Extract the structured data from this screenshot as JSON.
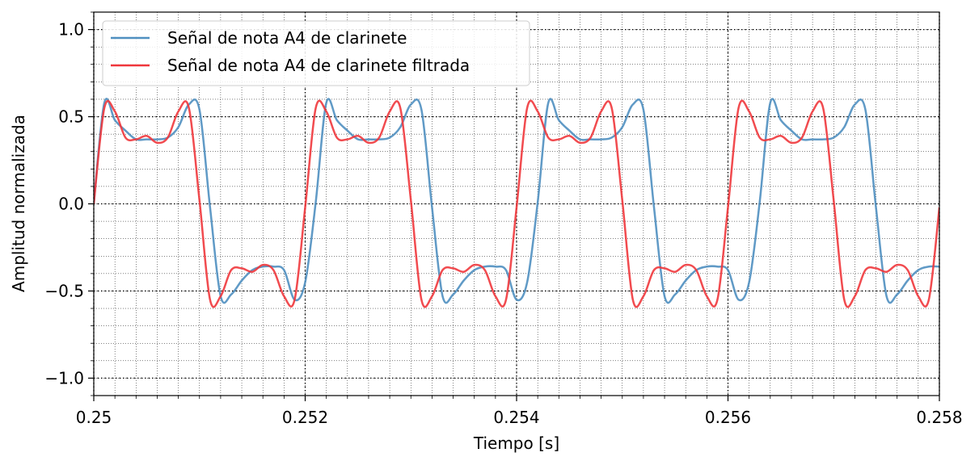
{
  "chart_data": {
    "type": "line",
    "title": "",
    "xlabel": "Tiempo [s]",
    "ylabel": "Amplitud normalizada",
    "xlim": [
      0.25,
      0.258
    ],
    "ylim": [
      -1.1,
      1.1
    ],
    "x_ticks": [
      0.25,
      0.252,
      0.254,
      0.256,
      0.258
    ],
    "x_tick_labels": [
      "0.25",
      "0.252",
      "0.254",
      "0.256",
      "0.258"
    ],
    "y_ticks": [
      -1.0,
      -0.5,
      0.0,
      0.5,
      1.0
    ],
    "y_tick_labels": [
      "−1.0",
      "−0.5",
      "0.0",
      "0.5",
      "1.0"
    ],
    "grid": {
      "major": true,
      "minor": true,
      "style": "dotted"
    },
    "legend_position": "top-left",
    "series": [
      {
        "name": "Señal de nota A4 de clarinete",
        "color": "#4f8fc0",
        "x": [
          0.25,
          0.2501,
          0.2502,
          0.2503,
          0.2504,
          0.2505,
          0.2506,
          0.2507,
          0.2508,
          0.2509,
          0.251,
          0.2511,
          0.2512,
          0.2513,
          0.2514,
          0.2515,
          0.2516,
          0.2517,
          0.2518,
          0.2519,
          0.252,
          0.2521,
          0.2522,
          0.2523,
          0.2524,
          0.2525,
          0.2526,
          0.2527,
          0.2528,
          0.2529,
          0.253,
          0.2531,
          0.2532,
          0.2533,
          0.2534,
          0.2535,
          0.2536,
          0.2537,
          0.2538,
          0.2539,
          0.254,
          0.2541,
          0.2542,
          0.2543,
          0.2544,
          0.2545,
          0.2546,
          0.2547,
          0.2548,
          0.2549,
          0.255,
          0.2551,
          0.2552,
          0.2553,
          0.2554,
          0.2555,
          0.2556,
          0.2557,
          0.2558,
          0.2559,
          0.256,
          0.2561,
          0.2562,
          0.2563,
          0.2564,
          0.2565,
          0.2566,
          0.2567,
          0.2568,
          0.2569,
          0.257,
          0.2571,
          0.2572,
          0.2573,
          0.2574,
          0.2575,
          0.2576,
          0.2577,
          0.2578,
          0.2579,
          0.258
        ],
        "y": [
          0.0,
          0.58,
          0.48,
          0.42,
          0.37,
          0.37,
          0.37,
          0.38,
          0.44,
          0.57,
          0.54,
          -0.02,
          -0.53,
          -0.52,
          -0.44,
          -0.38,
          -0.36,
          -0.36,
          -0.38,
          -0.55,
          -0.45,
          0.01,
          0.58,
          0.48,
          0.42,
          0.37,
          0.37,
          0.37,
          0.38,
          0.44,
          0.57,
          0.54,
          -0.02,
          -0.53,
          -0.52,
          -0.44,
          -0.38,
          -0.36,
          -0.36,
          -0.38,
          -0.55,
          -0.45,
          0.01,
          0.58,
          0.48,
          0.42,
          0.37,
          0.37,
          0.37,
          0.38,
          0.44,
          0.57,
          0.54,
          -0.02,
          -0.53,
          -0.52,
          -0.44,
          -0.38,
          -0.36,
          -0.36,
          -0.38,
          -0.55,
          -0.45,
          0.01,
          0.58,
          0.48,
          0.42,
          0.37,
          0.37,
          0.37,
          0.38,
          0.44,
          0.57,
          0.54,
          -0.02,
          -0.53,
          -0.52,
          -0.44,
          -0.38,
          -0.36,
          -0.36
        ]
      },
      {
        "name": "Señal de nota A4 de clarinete filtrada",
        "color": "#f0373c",
        "x": [
          0.25,
          0.2501,
          0.2502,
          0.2503,
          0.2504,
          0.2505,
          0.2506,
          0.2507,
          0.2508,
          0.2509,
          0.251,
          0.2511,
          0.2512,
          0.2513,
          0.2514,
          0.2515,
          0.2516,
          0.2517,
          0.2518,
          0.2519,
          0.252,
          0.2521,
          0.2522,
          0.2523,
          0.2524,
          0.2525,
          0.2526,
          0.2527,
          0.2528,
          0.2529,
          0.253,
          0.2531,
          0.2532,
          0.2533,
          0.2534,
          0.2535,
          0.2536,
          0.2537,
          0.2538,
          0.2539,
          0.254,
          0.2541,
          0.2542,
          0.2543,
          0.2544,
          0.2545,
          0.2546,
          0.2547,
          0.2548,
          0.2549,
          0.255,
          0.2551,
          0.2552,
          0.2553,
          0.2554,
          0.2555,
          0.2556,
          0.2557,
          0.2558,
          0.2559,
          0.256,
          0.2561,
          0.2562,
          0.2563,
          0.2564,
          0.2565,
          0.2566,
          0.2567,
          0.2568,
          0.2569,
          0.257,
          0.2571,
          0.2572,
          0.2573,
          0.2574,
          0.2575,
          0.2576,
          0.2577,
          0.2578,
          0.2579,
          0.258
        ],
        "y": [
          0.0,
          0.55,
          0.53,
          0.38,
          0.37,
          0.39,
          0.35,
          0.38,
          0.53,
          0.55,
          0.02,
          -0.55,
          -0.53,
          -0.38,
          -0.37,
          -0.39,
          -0.35,
          -0.38,
          -0.53,
          -0.55,
          -0.02,
          0.55,
          0.53,
          0.38,
          0.37,
          0.39,
          0.35,
          0.38,
          0.53,
          0.55,
          0.02,
          -0.55,
          -0.53,
          -0.38,
          -0.37,
          -0.39,
          -0.35,
          -0.38,
          -0.53,
          -0.55,
          -0.02,
          0.55,
          0.53,
          0.38,
          0.37,
          0.39,
          0.35,
          0.38,
          0.53,
          0.55,
          0.02,
          -0.55,
          -0.53,
          -0.38,
          -0.37,
          -0.39,
          -0.35,
          -0.38,
          -0.53,
          -0.55,
          -0.02,
          0.55,
          0.53,
          0.38,
          0.37,
          0.39,
          0.35,
          0.38,
          0.53,
          0.55,
          0.02,
          -0.55,
          -0.53,
          -0.38,
          -0.37,
          -0.39,
          -0.35,
          -0.38,
          -0.53,
          -0.55,
          -0.02
        ]
      }
    ]
  }
}
